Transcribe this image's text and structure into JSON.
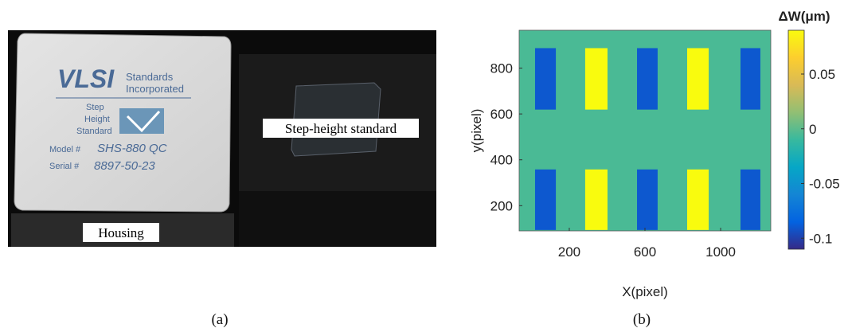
{
  "panel_a": {
    "labels": [
      "Housing",
      "Step-height standard"
    ],
    "standard_text": {
      "brand": "VLSI",
      "company": [
        "Standards",
        "Incorporated"
      ],
      "product": [
        "Step",
        "Height",
        "Standard"
      ],
      "model_label": "Model #",
      "model": "SHS-880 QC",
      "serial_label": "Serial #",
      "serial": "8897-50-23"
    }
  },
  "captions": [
    "(a)",
    "(b)"
  ],
  "chart_data": {
    "type": "heatmap",
    "xlabel": "X(pixel)",
    "ylabel": "y(pixel)",
    "xlim": [
      -65,
      1265
    ],
    "xticks": [
      200,
      600,
      1000
    ],
    "ylim": [
      90,
      965
    ],
    "yticks": [
      200,
      400,
      600,
      800
    ],
    "colorbar": {
      "label": "ΔW(μm)",
      "clim": [
        -0.11,
        0.09
      ],
      "ticks": [
        0.05,
        0,
        -0.05,
        -0.1
      ]
    },
    "background": -0.005,
    "regions": [
      {
        "x": [
          19,
          129
        ],
        "y": [
          619,
          887
        ],
        "value": -0.09
      },
      {
        "x": [
          284,
          402
        ],
        "y": [
          619,
          887
        ],
        "value": 0.09
      },
      {
        "x": [
          558,
          667
        ],
        "y": [
          619,
          887
        ],
        "value": -0.09
      },
      {
        "x": [
          823,
          937
        ],
        "y": [
          619,
          887
        ],
        "value": 0.09
      },
      {
        "x": [
          1105,
          1210
        ],
        "y": [
          619,
          887
        ],
        "value": -0.09
      },
      {
        "x": [
          19,
          129
        ],
        "y": [
          94,
          358
        ],
        "value": -0.09
      },
      {
        "x": [
          284,
          402
        ],
        "y": [
          94,
          358
        ],
        "value": 0.09
      },
      {
        "x": [
          558,
          667
        ],
        "y": [
          94,
          358
        ],
        "value": -0.09
      },
      {
        "x": [
          823,
          937
        ],
        "y": [
          94,
          358
        ],
        "value": 0.09
      },
      {
        "x": [
          1105,
          1210
        ],
        "y": [
          94,
          358
        ],
        "value": -0.09
      }
    ]
  }
}
